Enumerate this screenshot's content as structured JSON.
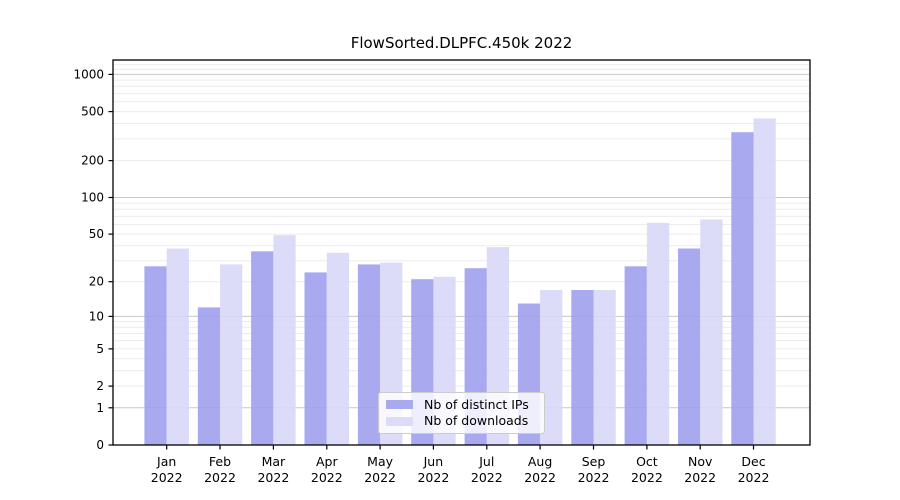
{
  "chart_data": {
    "type": "bar",
    "title": "FlowSorted.DLPFC.450k 2022",
    "categories": [
      "Jan 2022",
      "Feb 2022",
      "Mar 2022",
      "Apr 2022",
      "May 2022",
      "Jun 2022",
      "Jul 2022",
      "Aug 2022",
      "Sep 2022",
      "Oct 2022",
      "Nov 2022",
      "Dec 2022"
    ],
    "series": [
      {
        "name": "Nb of distinct IPs",
        "color": "#a9a9f0",
        "values": [
          27,
          12,
          36,
          24,
          28,
          21,
          26,
          13,
          17,
          27,
          38,
          340
        ]
      },
      {
        "name": "Nb of downloads",
        "color": "#dcdcf8",
        "values": [
          38,
          28,
          49,
          35,
          29,
          22,
          39,
          17,
          17,
          62,
          66,
          440
        ]
      }
    ],
    "xlabel": "",
    "ylabel": "",
    "yscale": "log1p",
    "yticks": [
      0,
      1,
      2,
      5,
      10,
      20,
      50,
      100,
      200,
      500,
      1000
    ],
    "ylim": [
      0,
      1300
    ],
    "grid": true,
    "legend_position": "lower center",
    "axis_color": "#000000",
    "grid_major_color": "#c8c8c8",
    "grid_minor_color": "#ececec",
    "text_color": "#000000"
  }
}
